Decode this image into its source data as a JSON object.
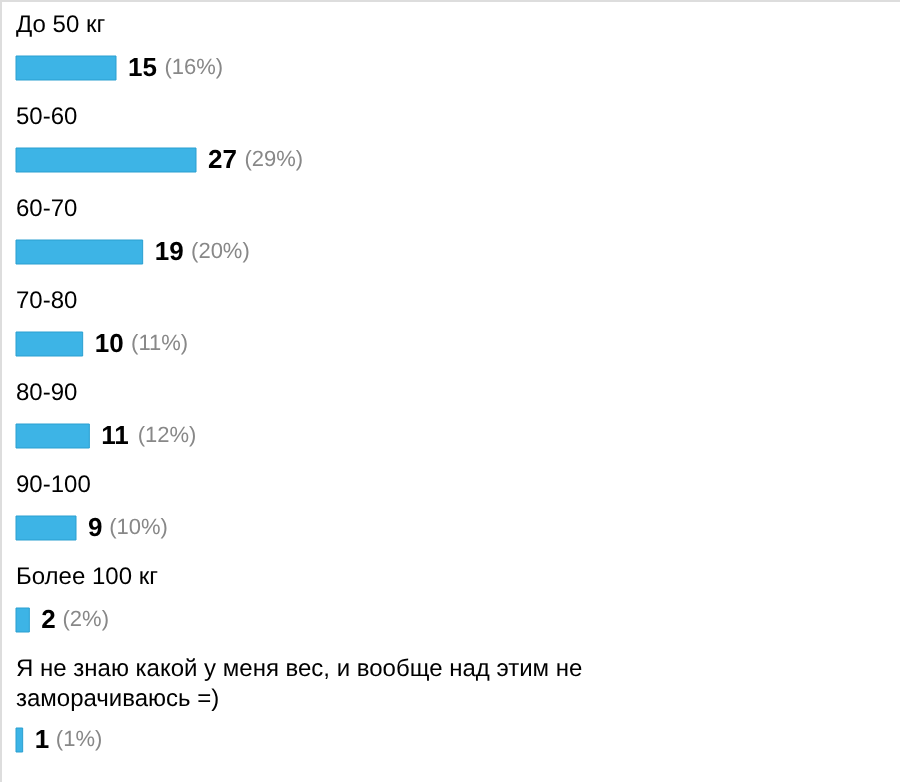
{
  "chart_data": {
    "type": "bar",
    "orientation": "horizontal",
    "categories": [
      "До 50 кг",
      "50-60",
      "60-70",
      "70-80",
      "80-90",
      "90-100",
      "Более 100 кг",
      "Я не знаю какой у меня вес, и вообще над этим не заморачиваюсь =)"
    ],
    "values": [
      15,
      27,
      19,
      10,
      11,
      9,
      2,
      1
    ],
    "color": "#3db4e6",
    "data_labels": true,
    "annotations": [
      "(16%)",
      "(29%)",
      "(20%)",
      "(11%)",
      "(12%)",
      "(10%)",
      "(2%)",
      "(1%)"
    ]
  }
}
